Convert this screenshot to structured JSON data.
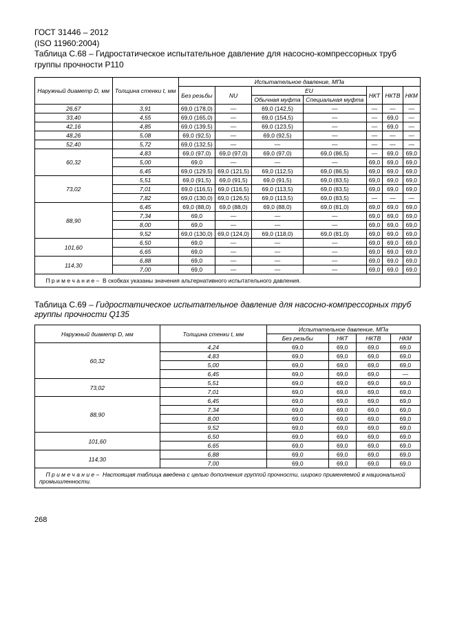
{
  "header": {
    "gost": "ГОСТ 31446 – 2012",
    "iso": "(ISO 11960:2004)",
    "caption68": "Таблица С.68 – Гидростатическое испытательное давление для насосно-компрессорных труб группы прочности Р110"
  },
  "t68": {
    "head": {
      "diam": "Наружный диаметр D, мм",
      "thick": "Толщина стенки t, мм",
      "group": "Испытательное давление,  МПа",
      "noThread": "Без резьбы",
      "nu": "NU",
      "eu": "EU",
      "euNorm": "Обычная муфта",
      "euSpec": "Специальная муфта",
      "nkt": "НКТ",
      "nktv": "НКТВ",
      "nkm": "НКМ"
    },
    "rows": [
      [
        "26,67",
        "3,91",
        "69,0 (178,0)",
        "—",
        "69,0 (142,5)",
        "—",
        "—",
        "—",
        "—"
      ],
      [
        "33,40",
        "4,55",
        "69,0 (165,0)",
        "—",
        "69,0 (154,5)",
        "—",
        "—",
        "69,0",
        "—"
      ],
      [
        "42,16",
        "4,85",
        "69,0 (139,5)",
        "—",
        "69,0 (123,5)",
        "—",
        "—",
        "69,0",
        "—"
      ],
      [
        "48,26",
        "5,08",
        "69,0 (92,5)",
        "—",
        "69,0 (92,5)",
        "—",
        "—",
        "—",
        "—"
      ],
      [
        "52,40",
        "5,72",
        "69,0 (132,5)",
        "—",
        "—",
        "—",
        "—",
        "—",
        "—"
      ]
    ],
    "g60": {
      "d": "60,32",
      "rows": [
        [
          "4,83",
          "69,0 (97,0)",
          "69,0 (97,0)",
          "69,0 (97,0)",
          "69,0 (86,5)",
          "—",
          "69,0",
          "69,0"
        ],
        [
          "5,00",
          "69,0",
          "—",
          "—",
          "—",
          "69,0",
          "69,0",
          "69,0"
        ],
        [
          "6,45",
          "69,0 (129,5)",
          "69,0 (121,5)",
          "69,0 (112,5)",
          "69,0 (86,5)",
          "69,0",
          "69,0",
          "69,0"
        ]
      ]
    },
    "g73": {
      "d": "73,02",
      "rows": [
        [
          "5,51",
          "69,0 (91,5)",
          "69,0 (91,5)",
          "69,0 (91,5)",
          "69,0 (83,5)",
          "69,0",
          "69,0",
          "69,0"
        ],
        [
          "7,01",
          "69,0 (116,5)",
          "69,0 (116,5)",
          "69,0 (113,5)",
          "69,0 (83,5)",
          "69,0",
          "69,0",
          "69,0"
        ],
        [
          "7,82",
          "69,0 (130,0)",
          "69,0 (126,5)",
          "69,0 (113,5)",
          "69,0 (83,5)",
          "—",
          "—",
          "—"
        ]
      ]
    },
    "g88": {
      "d": "88,90",
      "rows": [
        [
          "6,45",
          "69,0 (88,0)",
          "69,0 (88,0)",
          "69,0 (88,0)",
          "69,0 (81,0)",
          "69,0",
          "69,0",
          "69,0"
        ],
        [
          "7,34",
          "69,0",
          "—",
          "—",
          "—",
          "69,0",
          "69,0",
          "69,0"
        ],
        [
          "8,00",
          "69,0",
          "—",
          "—",
          "—",
          "69,0",
          "69,0",
          "69,0"
        ],
        [
          "9,52",
          "69,0 (130,0)",
          "69,0 (124,0)",
          "69,0 (118,0)",
          "69,0 (81,0)",
          "69,0",
          "69,0",
          "69,0"
        ]
      ]
    },
    "g101": {
      "d": "101,60",
      "rows": [
        [
          "6,50",
          "69,0",
          "—",
          "—",
          "—",
          "69,0",
          "69,0",
          "69,0"
        ],
        [
          "6,65",
          "69,0",
          "—",
          "—",
          "—",
          "69,0",
          "69,0",
          "69,0"
        ]
      ]
    },
    "g114": {
      "d": "114,30",
      "rows": [
        [
          "6,88",
          "69,0",
          "—",
          "—",
          "—",
          "69,0",
          "69,0",
          "69,0"
        ],
        [
          "7,00",
          "69,0",
          "—",
          "—",
          "—",
          "69,0",
          "69,0",
          "69,0"
        ]
      ]
    },
    "note": "В скобках указаны значения альтернативного испытательного давления.",
    "noteLabel": "П р и м е ч а н и е  –"
  },
  "t69caption": "Таблица С.69 –  Гидростатическое испытательное давление для насосно-компрессорных труб группы прочности Q135",
  "t69": {
    "head": {
      "diam": "Наружный диаметр D, мм",
      "thick": "Толщина стенки t, мм",
      "group": "Испытательное давление,  МПа",
      "noThread": "Без резьбы",
      "nkt": "НКТ",
      "nktv": "НКТВ",
      "nkm": "НКМ"
    },
    "g60": {
      "d": "60,32",
      "rows": [
        [
          "4,24",
          "69,0",
          "69,0",
          "69,0",
          "69,0"
        ],
        [
          "4,83",
          "69,0",
          "69,0",
          "69,0",
          "69,0"
        ],
        [
          "5,00",
          "69,0",
          "69,0",
          "69,0",
          "69,0"
        ],
        [
          "6,45",
          "69,0",
          "69,0",
          "69,0",
          "—"
        ]
      ]
    },
    "g73": {
      "d": "73,02",
      "rows": [
        [
          "5,51",
          "69,0",
          "69,0",
          "69,0",
          "69,0"
        ],
        [
          "7,01",
          "69,0",
          "69,0",
          "69,0",
          "69,0"
        ]
      ]
    },
    "g88": {
      "d": "88,90",
      "rows": [
        [
          "6,45",
          "69,0",
          "69,0",
          "69,0",
          "69,0"
        ],
        [
          "7,34",
          "69,0",
          "69,0",
          "69,0",
          "69,0"
        ],
        [
          "8,00",
          "69,0",
          "69,0",
          "69,0",
          "69,0"
        ],
        [
          "9,52",
          "69,0",
          "69,0",
          "69,0",
          "69,0"
        ]
      ]
    },
    "g101": {
      "d": "101,60",
      "rows": [
        [
          "6,50",
          "69,0",
          "69,0",
          "69,0",
          "69,0"
        ],
        [
          "6,65",
          "69,0",
          "69,0",
          "69,0",
          "69,0"
        ]
      ]
    },
    "g114": {
      "d": "114,30",
      "rows": [
        [
          "6,88",
          "69,0",
          "69,0",
          "69,0",
          "69,0"
        ],
        [
          "7,00",
          "69,0",
          "69,0",
          "69,0",
          "69,0"
        ]
      ]
    },
    "noteLabel": "П р и м е ч а н и е –",
    "note": "Настоящая таблица введена с целью дополнения группой прочности, широко применяемой в национальной промышленности."
  },
  "pageNum": "268"
}
